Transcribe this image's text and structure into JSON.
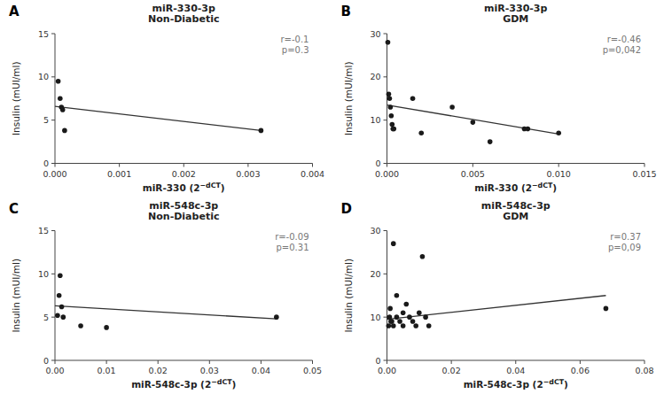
{
  "chart_data": [
    {
      "type": "scatter",
      "panel_label": "A",
      "title": "miR-330-3p\nNon-Diabetic",
      "xlabel": "miR-330 (2−dCT)",
      "ylabel": "Insulin (mUI/ml)",
      "xlim": [
        0,
        0.004
      ],
      "ylim": [
        0,
        15
      ],
      "xticks": [
        {
          "value": 0,
          "label": "0.000"
        },
        0.001,
        0.002,
        0.003,
        0.004
      ],
      "yticks": [
        0,
        5,
        10,
        15
      ],
      "annotation": "r=-0.1\np=0.3",
      "series": [
        {
          "type": "scatter",
          "color": "#1a1a1a",
          "x": [
            5e-05,
            8e-05,
            0.0001,
            0.00012,
            0.00015,
            0.0032
          ],
          "values": [
            9.5,
            7.5,
            6.5,
            6.2,
            3.8,
            3.8
          ]
        },
        {
          "type": "line",
          "color": "#333333",
          "x": [
            0.0,
            0.0032
          ],
          "values": [
            6.6,
            3.8
          ]
        }
      ]
    },
    {
      "type": "scatter",
      "panel_label": "B",
      "title": "miR-330-3p\nGDM",
      "xlabel": "miR-330 (2−dCT)",
      "ylabel": "Insulin (mUI/ml)",
      "xlim": [
        0,
        0.015
      ],
      "ylim": [
        0,
        30
      ],
      "xticks": [
        {
          "value": 0,
          "label": "0.000"
        },
        0.005,
        {
          "value": 0.01,
          "label": "0.010"
        },
        0.015
      ],
      "yticks": [
        0,
        10,
        20,
        30
      ],
      "annotation": "r=-0.46\np=0,042",
      "series": [
        {
          "type": "scatter",
          "color": "#1a1a1a",
          "x": [
            5e-05,
            0.0001,
            0.00015,
            0.0002,
            0.00025,
            0.0003,
            0.00035,
            0.0004,
            0.0015,
            0.002,
            0.0038,
            0.005,
            0.006,
            0.008,
            0.0082,
            0.01
          ],
          "values": [
            28,
            16,
            15,
            13,
            11,
            9,
            8,
            8,
            15,
            7,
            13,
            9.5,
            5,
            8,
            8,
            7
          ]
        },
        {
          "type": "line",
          "color": "#333333",
          "x": [
            0.0,
            0.01
          ],
          "values": [
            13.5,
            6.8
          ]
        }
      ]
    },
    {
      "type": "scatter",
      "panel_label": "C",
      "title": "miR-548c-3p\nNon-Diabetic",
      "xlabel": "miR-548c-3p (2−dCT)",
      "ylabel": "Insulin (mUI/ml)",
      "xlim": [
        0,
        0.05
      ],
      "ylim": [
        0,
        15
      ],
      "xticks": [
        {
          "value": 0,
          "label": "0.00"
        },
        0.01,
        0.02,
        0.03,
        0.04,
        0.05
      ],
      "yticks": [
        0,
        5,
        10,
        15
      ],
      "annotation": "r=-0.09\np=0.31",
      "series": [
        {
          "type": "scatter",
          "color": "#1a1a1a",
          "x": [
            0.0005,
            0.0008,
            0.001,
            0.0013,
            0.0016,
            0.005,
            0.01,
            0.043
          ],
          "values": [
            5.2,
            7.5,
            9.8,
            6.2,
            5.0,
            4.0,
            3.8,
            5.0
          ]
        },
        {
          "type": "line",
          "color": "#333333",
          "x": [
            0.0,
            0.043
          ],
          "values": [
            6.3,
            4.8
          ]
        }
      ]
    },
    {
      "type": "scatter",
      "panel_label": "D",
      "title": "miR-548c-3p\nGDM",
      "xlabel": "miR-548c-3p (2−dCT)",
      "ylabel": "Insulin (mUI/ml)",
      "xlim": [
        0,
        0.08
      ],
      "ylim": [
        0,
        30
      ],
      "xticks": [
        {
          "value": 0,
          "label": "0.00"
        },
        0.02,
        0.04,
        0.06,
        0.08
      ],
      "yticks": [
        0,
        10,
        20,
        30
      ],
      "annotation": "r=0.37\np=0,09",
      "series": [
        {
          "type": "scatter",
          "color": "#1a1a1a",
          "x": [
            0.0005,
            0.0008,
            0.001,
            0.0012,
            0.0015,
            0.002,
            0.002,
            0.003,
            0.003,
            0.004,
            0.005,
            0.005,
            0.006,
            0.007,
            0.008,
            0.009,
            0.01,
            0.011,
            0.012,
            0.013,
            0.068
          ],
          "values": [
            8,
            10,
            12,
            9,
            9,
            8,
            27,
            15,
            10,
            9,
            11,
            8,
            13,
            10,
            9,
            8,
            11,
            24,
            10,
            8,
            12
          ]
        },
        {
          "type": "line",
          "color": "#333333",
          "x": [
            0.0,
            0.068
          ],
          "values": [
            9.5,
            15.0
          ]
        }
      ]
    }
  ]
}
